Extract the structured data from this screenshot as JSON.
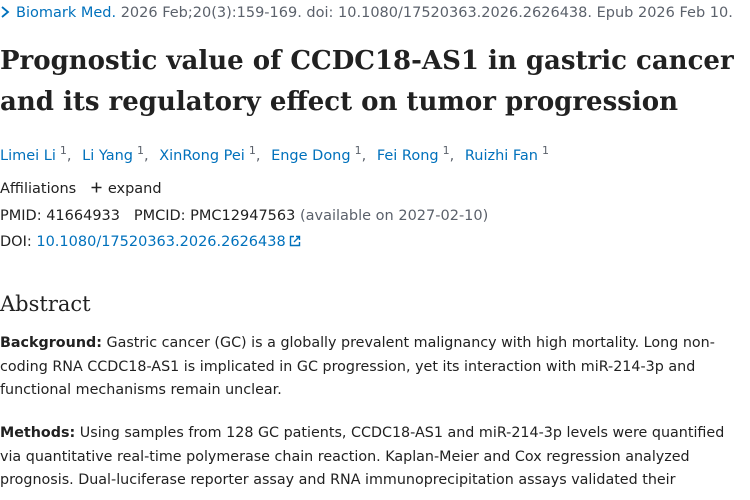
{
  "citation": {
    "journal": "Biomark Med.",
    "details": "2026 Feb;20(3):159-169. doi: 10.1080/17520363.2026.2626438. Epub 2026 Feb 10."
  },
  "title": "Prognostic value of CCDC18-AS1 in gastric cancer and its regulatory effect on tumor progression",
  "authors": [
    {
      "name": "Limei Li",
      "aff": "1"
    },
    {
      "name": "Li Yang",
      "aff": "1"
    },
    {
      "name": "XinRong Pei",
      "aff": "1"
    },
    {
      "name": "Enge Dong",
      "aff": "1"
    },
    {
      "name": "Fei Rong",
      "aff": "1"
    },
    {
      "name": "Ruizhi Fan",
      "aff": "1"
    }
  ],
  "affiliations": {
    "label": "Affiliations",
    "expand_label": "expand"
  },
  "ids": {
    "pmid_label": "PMID:",
    "pmid": "41664933",
    "pmcid_label": "PMCID:",
    "pmcid": "PMC12947563",
    "availability": "(available on 2027-02-10)"
  },
  "doi": {
    "label": "DOI:",
    "value": "10.1080/17520363.2026.2626438"
  },
  "abstract": {
    "heading": "Abstract",
    "background_label": "Background:",
    "background_text": "Gastric cancer (GC) is a globally prevalent malignancy with high mortality. Long non-coding RNA CCDC18-AS1 is implicated in GC progression, yet its interaction with miR-214-3p and functional mechanisms remain unclear.",
    "methods_label": "Methods:",
    "methods_text": "Using samples from 128 GC patients, CCDC18-AS1 and miR-214-3p levels were quantified via quantitative real-time polymerase chain reaction. Kaplan-Meier and Cox regression analyzed prognosis. Dual-luciferase reporter assay and RNA immunoprecipitation assays validated their"
  },
  "colors": {
    "link": "#0071bc",
    "text": "#212121",
    "muted": "#5b616b"
  }
}
